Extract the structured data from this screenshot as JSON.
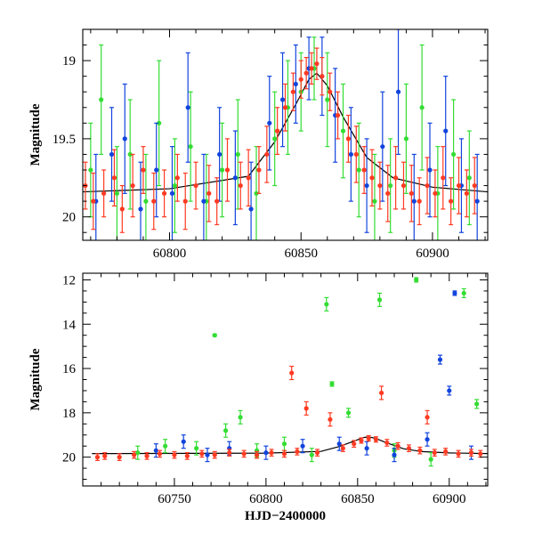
{
  "colors": {
    "green": "#33dd33",
    "blue": "#1144dd",
    "red": "#ff3a22",
    "model": "#000000"
  },
  "chart_data": [
    {
      "type": "scatter",
      "title": "",
      "xlabel": "",
      "ylabel": "Magnitude",
      "xlim": [
        60767,
        60921
      ],
      "ylim": [
        20.15,
        18.8
      ],
      "y_inverted": true,
      "grid": false,
      "legend": "none",
      "xticks": [
        60800,
        60850,
        60900
      ],
      "yticks": [
        19,
        19.5,
        20
      ],
      "xticklabels": [
        "60800",
        "60850",
        "60900"
      ],
      "yticklabels": [
        "19",
        "19.5",
        "20"
      ],
      "model_curve": {
        "x": [
          60767,
          60800,
          60830,
          60840,
          60848,
          60853,
          60856,
          60860,
          60866,
          60875,
          60885,
          60900,
          60921
        ],
        "y": [
          19.84,
          19.82,
          19.74,
          19.52,
          19.28,
          19.12,
          19.08,
          19.16,
          19.36,
          19.62,
          19.75,
          19.81,
          19.84
        ]
      },
      "series": [
        {
          "color": "green",
          "x": [
            60770,
            60774,
            60780,
            60785,
            60791,
            60796,
            60802,
            60808,
            60814,
            60820,
            60826,
            60833,
            60840,
            60845,
            60850,
            60855,
            60860,
            60866,
            60872,
            60878,
            60884,
            60890,
            60896,
            60902,
            60908,
            60914
          ],
          "y": [
            19.7,
            19.25,
            19.85,
            19.6,
            19.9,
            19.4,
            19.8,
            19.55,
            19.9,
            19.7,
            19.6,
            19.85,
            19.5,
            19.3,
            19.2,
            19.05,
            19.25,
            19.45,
            19.7,
            19.9,
            19.8,
            19.5,
            19.3,
            19.85,
            19.6,
            19.75
          ],
          "err": [
            0.3,
            0.35,
            0.3,
            0.35,
            0.3,
            0.4,
            0.3,
            0.35,
            0.3,
            0.3,
            0.35,
            0.3,
            0.3,
            0.3,
            0.25,
            0.2,
            0.3,
            0.3,
            0.3,
            0.3,
            0.3,
            0.35,
            0.4,
            0.3,
            0.35,
            0.3
          ]
        },
        {
          "color": "blue",
          "x": [
            60772,
            60778,
            60783,
            60789,
            60795,
            60801,
            60807,
            60813,
            60819,
            60825,
            60831,
            60838,
            60843,
            60848,
            60853,
            60858,
            60863,
            60869,
            60875,
            60881,
            60887,
            60893,
            60899,
            60905,
            60911,
            60917
          ],
          "y": [
            19.9,
            19.6,
            19.5,
            19.95,
            19.7,
            19.85,
            19.3,
            19.9,
            19.6,
            19.75,
            19.95,
            19.4,
            19.25,
            19.15,
            19.05,
            19.1,
            19.35,
            19.6,
            19.8,
            19.55,
            19.2,
            19.9,
            19.7,
            19.45,
            19.8,
            19.9
          ],
          "err": [
            0.3,
            0.3,
            0.35,
            0.3,
            0.3,
            0.3,
            0.35,
            0.3,
            0.3,
            0.3,
            0.3,
            0.3,
            0.3,
            0.25,
            0.2,
            0.25,
            0.3,
            0.3,
            0.3,
            0.35,
            0.4,
            0.3,
            0.3,
            0.35,
            0.3,
            0.3
          ]
        },
        {
          "color": "red",
          "x": [
            60768,
            60771,
            60775,
            60779,
            60782,
            60786,
            60790,
            60794,
            60798,
            60803,
            60806,
            60810,
            60815,
            60818,
            60822,
            60827,
            60830,
            60834,
            60837,
            60841,
            60844,
            60847,
            60850,
            60852,
            60854,
            60856,
            60858,
            60861,
            60864,
            60868,
            60871,
            60874,
            60877,
            60880,
            60883,
            60886,
            60889,
            60892,
            60895,
            60898,
            60901,
            60904,
            60907,
            60910,
            60913,
            60916
          ],
          "y": [
            19.8,
            19.9,
            19.85,
            19.75,
            19.95,
            19.8,
            19.7,
            19.9,
            19.85,
            19.75,
            19.9,
            19.8,
            19.85,
            19.9,
            19.7,
            19.8,
            19.75,
            19.7,
            19.6,
            19.45,
            19.3,
            19.2,
            19.12,
            19.08,
            19.05,
            19.02,
            19.1,
            19.2,
            19.35,
            19.5,
            19.6,
            19.7,
            19.75,
            19.8,
            19.85,
            19.75,
            19.8,
            19.85,
            19.9,
            19.8,
            19.85,
            19.75,
            19.9,
            19.8,
            19.85,
            19.8
          ],
          "err": [
            0.15,
            0.18,
            0.15,
            0.18,
            0.15,
            0.2,
            0.15,
            0.18,
            0.15,
            0.15,
            0.18,
            0.15,
            0.18,
            0.15,
            0.2,
            0.15,
            0.18,
            0.15,
            0.18,
            0.15,
            0.15,
            0.12,
            0.12,
            0.1,
            0.1,
            0.1,
            0.12,
            0.12,
            0.15,
            0.15,
            0.18,
            0.15,
            0.18,
            0.15,
            0.18,
            0.2,
            0.15,
            0.18,
            0.15,
            0.18,
            0.15,
            0.2,
            0.15,
            0.18,
            0.15,
            0.18
          ]
        }
      ]
    },
    {
      "type": "scatter",
      "title": "",
      "xlabel": "HJD−2400000",
      "ylabel": "Magnitude",
      "xlim": [
        60700,
        60921
      ],
      "ylim": [
        21.3,
        11.7
      ],
      "y_inverted": true,
      "grid": false,
      "legend": "none",
      "xticks": [
        60750,
        60800,
        60850,
        60900
      ],
      "yticks": [
        12,
        14,
        16,
        18,
        20
      ],
      "xticklabels": [
        "60750",
        "60800",
        "60850",
        "60900"
      ],
      "yticklabels": [
        "12",
        "14",
        "16",
        "18",
        "20"
      ],
      "model_curve": {
        "x": [
          60705,
          60800,
          60830,
          60840,
          60848,
          60853,
          60856,
          60860,
          60866,
          60875,
          60885,
          60900,
          60921
        ],
        "y": [
          19.84,
          19.82,
          19.74,
          19.52,
          19.28,
          19.12,
          19.08,
          19.16,
          19.36,
          19.62,
          19.75,
          19.81,
          19.84
        ]
      },
      "series": [
        {
          "color": "green",
          "x": [
            60730,
            60745,
            60762,
            60772,
            60778,
            60786,
            60795,
            60810,
            60825,
            60833,
            60836,
            60845,
            60862,
            60870,
            60882,
            60890,
            60908,
            60915
          ],
          "y": [
            19.8,
            19.5,
            19.6,
            14.5,
            18.8,
            18.2,
            19.7,
            19.4,
            19.9,
            13.1,
            16.7,
            18.0,
            12.9,
            19.7,
            12.0,
            20.1,
            12.6,
            17.6
          ],
          "err": [
            0.3,
            0.3,
            0.3,
            0.05,
            0.3,
            0.3,
            0.3,
            0.3,
            0.3,
            0.3,
            0.1,
            0.2,
            0.3,
            0.3,
            0.1,
            0.3,
            0.2,
            0.2
          ]
        },
        {
          "color": "blue",
          "x": [
            60740,
            60755,
            60768,
            60780,
            60800,
            60820,
            60840,
            60855,
            60870,
            60888,
            60895,
            60900,
            60903,
            60912
          ],
          "y": [
            19.7,
            19.3,
            19.9,
            19.6,
            19.8,
            19.5,
            19.4,
            19.6,
            19.9,
            19.2,
            15.6,
            17.0,
            12.6,
            19.8
          ],
          "err": [
            0.3,
            0.3,
            0.3,
            0.3,
            0.3,
            0.3,
            0.3,
            0.3,
            0.3,
            0.3,
            0.2,
            0.2,
            0.1,
            0.3
          ]
        },
        {
          "color": "red",
          "x": [
            60708,
            60712,
            60720,
            60728,
            60735,
            60742,
            60750,
            60757,
            60765,
            60772,
            60780,
            60788,
            60795,
            60803,
            60810,
            60814,
            60817,
            60822,
            60828,
            60835,
            60842,
            60848,
            60852,
            60856,
            60860,
            60863,
            60866,
            60872,
            60878,
            60884,
            60888,
            60892,
            60898,
            60905,
            60912,
            60917
          ],
          "y": [
            20.0,
            19.95,
            20.0,
            19.9,
            19.95,
            19.85,
            19.9,
            19.95,
            19.85,
            19.9,
            19.8,
            19.85,
            19.9,
            19.8,
            19.85,
            16.2,
            19.75,
            17.8,
            19.8,
            18.3,
            19.6,
            19.4,
            19.25,
            19.15,
            19.2,
            17.1,
            19.35,
            19.5,
            19.6,
            19.7,
            18.2,
            19.8,
            19.75,
            19.85,
            19.8,
            19.85
          ],
          "err": [
            0.15,
            0.15,
            0.15,
            0.15,
            0.15,
            0.15,
            0.15,
            0.15,
            0.15,
            0.15,
            0.15,
            0.15,
            0.15,
            0.15,
            0.15,
            0.3,
            0.15,
            0.3,
            0.15,
            0.3,
            0.15,
            0.15,
            0.12,
            0.12,
            0.12,
            0.3,
            0.15,
            0.15,
            0.15,
            0.15,
            0.3,
            0.15,
            0.15,
            0.15,
            0.15,
            0.15
          ]
        }
      ]
    }
  ]
}
